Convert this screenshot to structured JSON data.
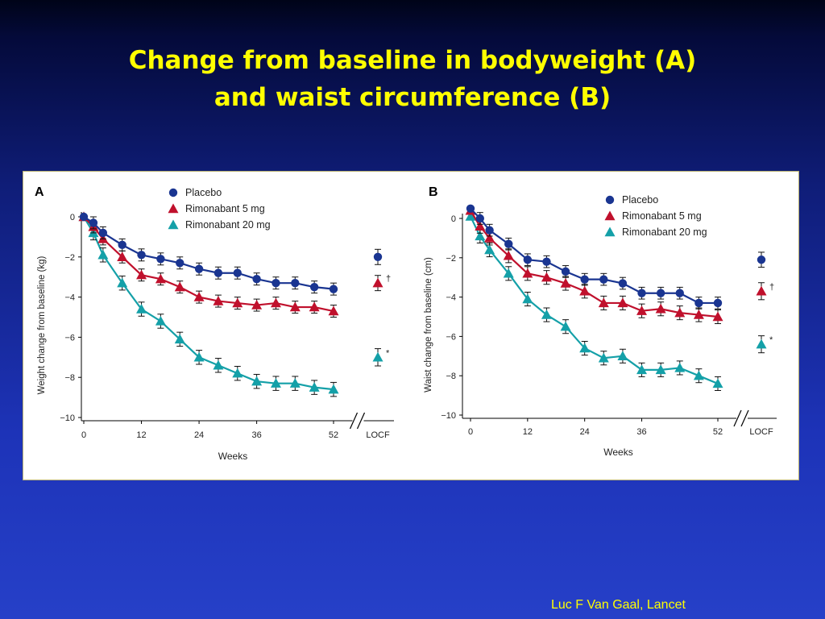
{
  "title": {
    "line1": "Change from baseline in bodyweight (A)",
    "line2": "and waist circumference (B)"
  },
  "credit": "Luc F Van Gaal, Lancet",
  "colors": {
    "placebo": "#1a3591",
    "rimonabant_5": "#c0102c",
    "rimonabant_20": "#14a0a8"
  },
  "chart_data": [
    {
      "type": "line",
      "panel_label": "A",
      "ylabel": "Weight change from baseline (kg)",
      "xlabel": "Weeks",
      "ylim": [
        -10,
        0
      ],
      "xlim": [
        0,
        52
      ],
      "x_ticks": [
        "0",
        "12",
        "24",
        "36",
        "52"
      ],
      "y_ticks": [
        "0",
        "−2",
        "−4",
        "−6",
        "−8",
        "−10"
      ],
      "locf_label": "LOCF",
      "legend": [
        "Placebo",
        "Rimonabant 5 mg",
        "Rimonabant 20 mg"
      ],
      "x": [
        0,
        2,
        4,
        8,
        12,
        16,
        20,
        24,
        28,
        32,
        36,
        40,
        44,
        48,
        52
      ],
      "series": [
        {
          "name": "Placebo",
          "values": [
            0,
            -0.3,
            -0.8,
            -1.4,
            -1.9,
            -2.1,
            -2.3,
            -2.6,
            -2.8,
            -2.8,
            -3.1,
            -3.3,
            -3.3,
            -3.5,
            -3.6
          ],
          "error": 0.3,
          "locf": -2.0,
          "locf_mark": ""
        },
        {
          "name": "Rimonabant 5 mg",
          "values": [
            0,
            -0.5,
            -1.1,
            -2.0,
            -2.9,
            -3.1,
            -3.5,
            -4.0,
            -4.2,
            -4.3,
            -4.4,
            -4.3,
            -4.5,
            -4.5,
            -4.7
          ],
          "error": 0.3,
          "locf": -3.3,
          "locf_mark": "†"
        },
        {
          "name": "Rimonabant 20 mg",
          "values": [
            0,
            -0.8,
            -1.9,
            -3.3,
            -4.6,
            -5.2,
            -6.1,
            -7.0,
            -7.4,
            -7.8,
            -8.2,
            -8.3,
            -8.3,
            -8.5,
            -8.6
          ],
          "error": 0.35,
          "locf": -7.0,
          "locf_mark": "*"
        }
      ]
    },
    {
      "type": "line",
      "panel_label": "B",
      "ylabel": "Waist change from baseline (cm)",
      "xlabel": "Weeks",
      "ylim": [
        -10,
        0
      ],
      "xlim": [
        0,
        52
      ],
      "x_ticks": [
        "0",
        "12",
        "24",
        "36",
        "52"
      ],
      "y_ticks": [
        "0",
        "−2",
        "−4",
        "−6",
        "−8",
        "−10"
      ],
      "locf_label": "LOCF",
      "legend": [
        "Placebo",
        "Rimonabant 5 mg",
        "Rimonabant 20 mg"
      ],
      "x": [
        0,
        2,
        4,
        8,
        12,
        16,
        20,
        24,
        28,
        32,
        36,
        40,
        44,
        48,
        52
      ],
      "series": [
        {
          "name": "Placebo",
          "values": [
            0.5,
            0,
            -0.6,
            -1.3,
            -2.1,
            -2.2,
            -2.7,
            -3.1,
            -3.1,
            -3.3,
            -3.8,
            -3.8,
            -3.8,
            -4.3,
            -4.3
          ],
          "error": 0.3,
          "locf": -2.1,
          "locf_mark": ""
        },
        {
          "name": "Rimonabant 5 mg",
          "values": [
            0.4,
            -0.4,
            -1.0,
            -1.9,
            -2.8,
            -3.0,
            -3.3,
            -3.7,
            -4.3,
            -4.3,
            -4.7,
            -4.6,
            -4.8,
            -4.9,
            -5.0
          ],
          "error": 0.35,
          "locf": -3.7,
          "locf_mark": "†"
        },
        {
          "name": "Rimonabant 20 mg",
          "values": [
            0.1,
            -0.9,
            -1.6,
            -2.8,
            -4.1,
            -4.9,
            -5.5,
            -6.6,
            -7.1,
            -7.0,
            -7.7,
            -7.7,
            -7.6,
            -8.0,
            -8.4
          ],
          "error": 0.35,
          "locf": -6.4,
          "locf_mark": "*"
        }
      ]
    }
  ]
}
